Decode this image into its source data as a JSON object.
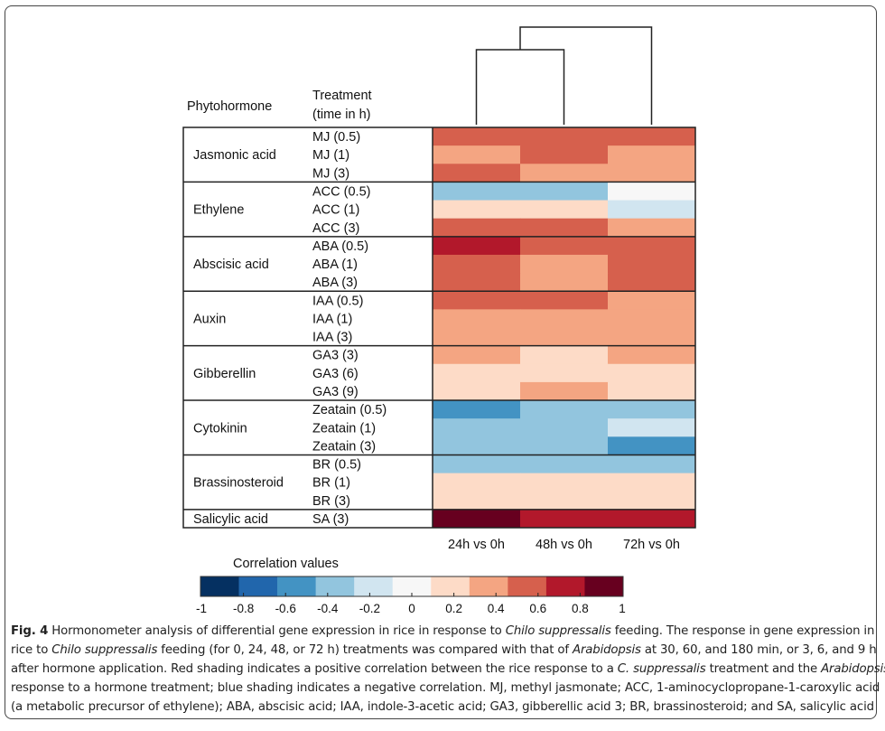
{
  "chart_data": {
    "type": "heatmap",
    "header_group": "Phytohormone",
    "header_treatment_line1": "Treatment",
    "header_treatment_line2": "(time in h)",
    "columns": [
      "24h vs 0h",
      "48h vs 0h",
      "72h vs 0h"
    ],
    "dendrogram": "((24h vs 0h, 48h vs 0h), 72h vs 0h)",
    "groups": [
      {
        "name": "Jasmonic acid",
        "rows": [
          {
            "label": "MJ (0.5)",
            "values": [
              0.6,
              0.6,
              0.6
            ]
          },
          {
            "label": "MJ (1)",
            "values": [
              0.4,
              0.6,
              0.4
            ]
          },
          {
            "label": "MJ (3)",
            "values": [
              0.6,
              0.4,
              0.4
            ]
          }
        ]
      },
      {
        "name": "Ethylene",
        "rows": [
          {
            "label": "ACC (0.5)",
            "values": [
              -0.4,
              -0.4,
              0.0
            ]
          },
          {
            "label": "ACC (1)",
            "values": [
              0.2,
              0.2,
              -0.2
            ]
          },
          {
            "label": "ACC (3)",
            "values": [
              0.6,
              0.6,
              0.4
            ]
          }
        ]
      },
      {
        "name": "Abscisic acid",
        "rows": [
          {
            "label": "ABA (0.5)",
            "values": [
              0.8,
              0.6,
              0.6
            ]
          },
          {
            "label": "ABA (1)",
            "values": [
              0.6,
              0.4,
              0.6
            ]
          },
          {
            "label": "ABA (3)",
            "values": [
              0.6,
              0.4,
              0.6
            ]
          }
        ]
      },
      {
        "name": "Auxin",
        "rows": [
          {
            "label": "IAA (0.5)",
            "values": [
              0.6,
              0.6,
              0.4
            ]
          },
          {
            "label": "IAA (1)",
            "values": [
              0.4,
              0.4,
              0.4
            ]
          },
          {
            "label": "IAA (3)",
            "values": [
              0.4,
              0.4,
              0.4
            ]
          }
        ]
      },
      {
        "name": "Gibberellin",
        "rows": [
          {
            "label": "GA3 (3)",
            "values": [
              0.4,
              0.2,
              0.4
            ]
          },
          {
            "label": "GA3 (6)",
            "values": [
              0.2,
              0.2,
              0.2
            ]
          },
          {
            "label": "GA3 (9)",
            "values": [
              0.2,
              0.4,
              0.2
            ]
          }
        ]
      },
      {
        "name": "Cytokinin",
        "rows": [
          {
            "label": "Zeatain (0.5)",
            "values": [
              -0.6,
              -0.4,
              -0.4
            ]
          },
          {
            "label": "Zeatain (1)",
            "values": [
              -0.4,
              -0.4,
              -0.2
            ]
          },
          {
            "label": "Zeatain (3)",
            "values": [
              -0.4,
              -0.4,
              -0.6
            ]
          }
        ]
      },
      {
        "name": "Brassinosteroid",
        "rows": [
          {
            "label": "BR (0.5)",
            "values": [
              -0.4,
              -0.4,
              -0.4
            ]
          },
          {
            "label": "BR (1)",
            "values": [
              0.2,
              0.2,
              0.2
            ]
          },
          {
            "label": "BR (3)",
            "values": [
              0.2,
              0.2,
              0.2
            ]
          }
        ]
      },
      {
        "name": "Salicylic acid",
        "rows": [
          {
            "label": "SA (3)",
            "values": [
              1.0,
              0.8,
              0.8
            ]
          }
        ]
      }
    ],
    "legend": {
      "title": "Correlation values",
      "range": [
        -1,
        1
      ],
      "tick_labels": [
        "-1",
        "-0.8",
        "-0.6",
        "-0.4",
        "-0.2",
        "0",
        "0.2",
        "0.4",
        "0.6",
        "0.8",
        "1"
      ],
      "colors": [
        "#053061",
        "#2166ac",
        "#4393c3",
        "#92c5de",
        "#d1e5f0",
        "#f7f7f7",
        "#fddbc7",
        "#f4a582",
        "#d6604d",
        "#b2182b",
        "#67001f"
      ]
    }
  },
  "caption": {
    "lines": [
      [
        {
          "t": "Fig. 4",
          "s": "b"
        },
        {
          "t": " Hormonometer analysis of differential gene expression in rice in response to "
        },
        {
          "t": "Chilo suppressalis",
          "s": "i"
        },
        {
          "t": " feeding. The response in gene expression in"
        }
      ],
      [
        {
          "t": "rice to "
        },
        {
          "t": "Chilo suppressalis",
          "s": "i"
        },
        {
          "t": " feeding (for 0, 24, 48, or 72 h) treatments was compared with that of "
        },
        {
          "t": "Arabidopsis",
          "s": "i"
        },
        {
          "t": " at 30, 60, and 180 min, or 3, 6, and 9 h"
        }
      ],
      [
        {
          "t": "after hormone application. Red shading indicates a positive correlation between the rice response to a "
        },
        {
          "t": "C. suppressalis",
          "s": "i"
        },
        {
          "t": " treatment and the "
        },
        {
          "t": "Arabidopsis",
          "s": "i"
        }
      ],
      [
        {
          "t": "response to a hormone treatment; blue shading indicates a negative correlation. MJ, methyl jasmonate; ACC, 1-aminocyclopropane-1-caroxylic acid"
        }
      ],
      [
        {
          "t": "(a metabolic precursor of ethylene); ABA, abscisic acid; IAA, indole-3-acetic acid; GA3, gibberellic acid 3; BR, brassinosteroid; and SA, salicylic acid"
        }
      ]
    ]
  }
}
